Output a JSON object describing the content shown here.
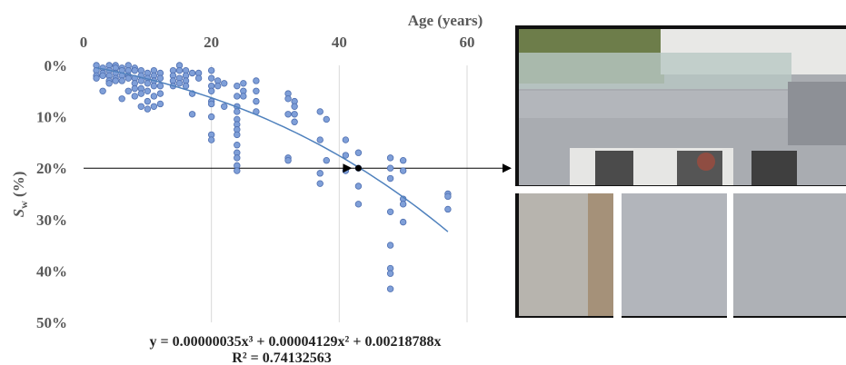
{
  "chart_data": {
    "type": "scatter",
    "x_label": "Age (years)",
    "y_label": {
      "symbol": "S",
      "subscript": "w",
      "unit": " (%)"
    },
    "equation": "y = 0.00000035x³ + 0.00004129x² + 0.00218788x",
    "r_squared": "R² = 0.74132563",
    "trendline": {
      "coefficients": [
        3.5e-07,
        4.129e-05,
        0.00218788
      ],
      "x_range": [
        2,
        57
      ]
    },
    "xlim": [
      0,
      60
    ],
    "xticks": [
      0,
      20,
      40,
      60
    ],
    "ylim": [
      0,
      50
    ],
    "yticks": [
      {
        "value": 0,
        "label": "0%"
      },
      {
        "value": 10,
        "label": "10%"
      },
      {
        "value": 20,
        "label": "20%"
      },
      {
        "value": 30,
        "label": "30%"
      },
      {
        "value": 40,
        "label": "40%"
      },
      {
        "value": 50,
        "label": "50%"
      }
    ],
    "y_inverted": true,
    "xgrid": true,
    "color": "#7f9fd8",
    "trend_color": "#4f81bd",
    "reference_line": 20,
    "highlight": {
      "x": 43,
      "y": 20
    },
    "x": [
      2,
      2,
      2,
      2,
      3,
      3,
      3,
      3,
      4,
      4,
      4,
      4,
      4,
      5,
      5,
      5,
      5,
      5,
      6,
      6,
      6,
      6,
      6,
      7,
      7,
      7,
      7,
      7,
      8,
      8,
      8,
      8,
      8,
      8,
      9,
      9,
      9,
      9,
      9,
      9,
      10,
      10,
      10,
      10,
      10,
      10,
      11,
      11,
      11,
      11,
      11,
      11,
      12,
      12,
      12,
      12,
      12,
      14,
      14,
      14,
      14,
      15,
      15,
      15,
      15,
      16,
      16,
      16,
      16,
      17,
      17,
      17,
      18,
      18,
      20,
      20,
      20,
      20,
      20,
      20,
      20,
      20,
      20,
      21,
      21,
      22,
      22,
      24,
      24,
      24,
      24,
      24,
      24,
      24,
      24,
      24,
      24,
      24,
      24,
      24,
      25,
      25,
      25,
      27,
      27,
      27,
      27,
      32,
      32,
      32,
      32,
      32,
      33,
      33,
      33,
      33,
      37,
      37,
      37,
      37,
      38,
      38,
      41,
      41,
      41,
      43,
      43,
      43,
      43,
      48,
      48,
      48,
      48,
      48,
      48,
      48,
      48,
      50,
      50,
      50,
      50,
      50,
      57,
      57,
      57
    ],
    "values": [
      0,
      1,
      2,
      2.5,
      0.5,
      1.5,
      2,
      5,
      0,
      1,
      2,
      3,
      3.5,
      0,
      0.5,
      1.5,
      2.5,
      3,
      0.5,
      1,
      2,
      3,
      6.5,
      0,
      1,
      2,
      2.5,
      5,
      0.5,
      1,
      2.5,
      3.5,
      4.5,
      6,
      1,
      2,
      3,
      4.5,
      5.5,
      8,
      1.5,
      2.5,
      3.5,
      5,
      7,
      8.5,
      1,
      2,
      3,
      4,
      6,
      8,
      1.5,
      2.5,
      4,
      5.5,
      7.5,
      1,
      2,
      3,
      4,
      0,
      1,
      2.5,
      3.5,
      1,
      2,
      3,
      4,
      1.5,
      5.5,
      9.5,
      1.5,
      2.5,
      1,
      2.5,
      4,
      5,
      7,
      7.5,
      10,
      13.5,
      14.5,
      3,
      4,
      3.5,
      8,
      4,
      6,
      8,
      9,
      10.5,
      11.5,
      12.5,
      13.5,
      15.5,
      17,
      18,
      19.5,
      20.5,
      3.5,
      5,
      6,
      3,
      5,
      7,
      9,
      5.5,
      6.5,
      9.5,
      18,
      18.5,
      7,
      8,
      9.5,
      11,
      9,
      14.5,
      21,
      23,
      10.5,
      18.5,
      14.5,
      17.5,
      20.5,
      17,
      20,
      23.5,
      27,
      18,
      20,
      22,
      28.5,
      35,
      39.5,
      40.5,
      43.5,
      18.5,
      20.5,
      26,
      27,
      30.5,
      25,
      25.5,
      28
    ]
  }
}
